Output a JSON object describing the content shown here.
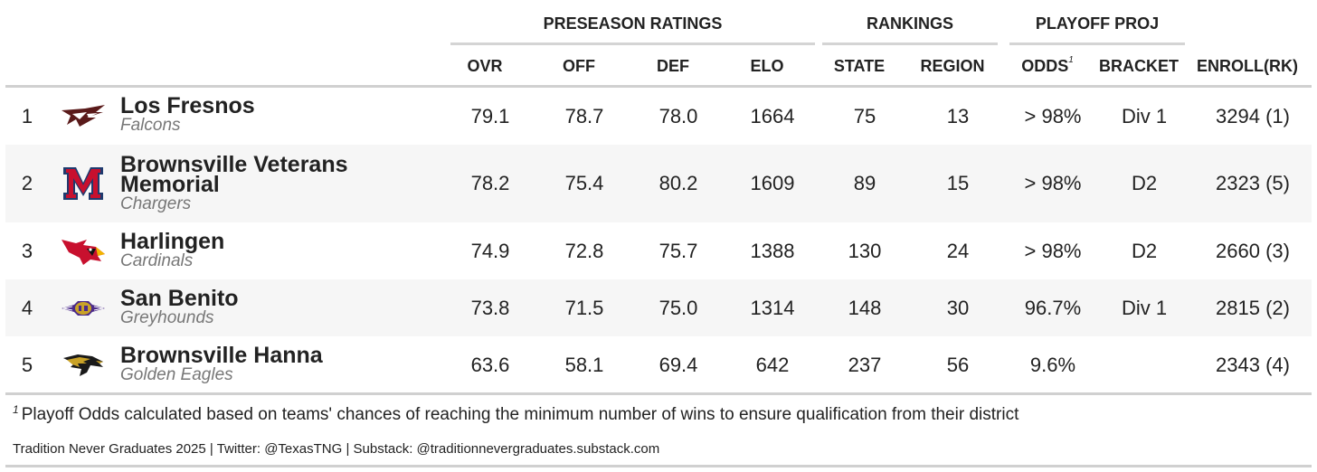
{
  "groups": {
    "preseason": "PRESEASON RATINGS",
    "rankings": "RANKINGS",
    "playoff": "PLAYOFF PROJ"
  },
  "columns": {
    "ovr": "OVR",
    "off": "OFF",
    "def": "DEF",
    "elo": "ELO",
    "state": "STATE",
    "region": "REGION",
    "odds": "ODDS",
    "odds_note": "1",
    "bracket": "BRACKET",
    "enroll": "ENROLL(RK)"
  },
  "rows": [
    {
      "rank": "1",
      "name": "Los Fresnos",
      "mascot": "Falcons",
      "logo": "los-fresnos-falcon-logo",
      "ovr": "79.1",
      "off": "78.7",
      "def": "78.0",
      "elo": "1664",
      "state": "75",
      "region": "13",
      "odds": "> 98%",
      "bracket": "Div 1",
      "enroll": "3294 (1)"
    },
    {
      "rank": "2",
      "name": "Brownsville Veterans Memorial",
      "mascot": "Chargers",
      "logo": "veterans-memorial-m-logo",
      "ovr": "78.2",
      "off": "75.4",
      "def": "80.2",
      "elo": "1609",
      "state": "89",
      "region": "15",
      "odds": "> 98%",
      "bracket": "D2",
      "enroll": "2323 (5)"
    },
    {
      "rank": "3",
      "name": "Harlingen",
      "mascot": "Cardinals",
      "logo": "harlingen-cardinal-logo",
      "ovr": "74.9",
      "off": "72.8",
      "def": "75.7",
      "elo": "1388",
      "state": "130",
      "region": "24",
      "odds": "> 98%",
      "bracket": "D2",
      "enroll": "2660 (3)"
    },
    {
      "rank": "4",
      "name": "San Benito",
      "mascot": "Greyhounds",
      "logo": "san-benito-greyhound-logo",
      "ovr": "73.8",
      "off": "71.5",
      "def": "75.0",
      "elo": "1314",
      "state": "148",
      "region": "30",
      "odds": "96.7%",
      "bracket": "Div 1",
      "enroll": "2815 (2)"
    },
    {
      "rank": "5",
      "name": "Brownsville Hanna",
      "mascot": "Golden Eagles",
      "logo": "hanna-golden-eagle-logo",
      "ovr": "63.6",
      "off": "58.1",
      "def": "69.4",
      "elo": "642",
      "state": "237",
      "region": "56",
      "odds": "9.6%",
      "bracket": "",
      "enroll": "2343 (4)"
    }
  ],
  "footnote": {
    "marker": "1",
    "text": "Playoff Odds calculated based on teams' chances of reaching the minimum number of wins to ensure qualification from their district"
  },
  "source": "Tradition Never Graduates 2025 | Twitter: @TexasTNG | Substack: @traditionnevergraduates.substack.com",
  "colors": {
    "cardinal_red": "#c8102e",
    "memorial_navy": "#1f3a6e",
    "falcon_maroon": "#5a1a1a",
    "greyhound_purple": "#4b2a8a",
    "eagle_gold": "#c9a227",
    "row_alt": "#f6f6f6",
    "rule": "#d0d0d0"
  }
}
